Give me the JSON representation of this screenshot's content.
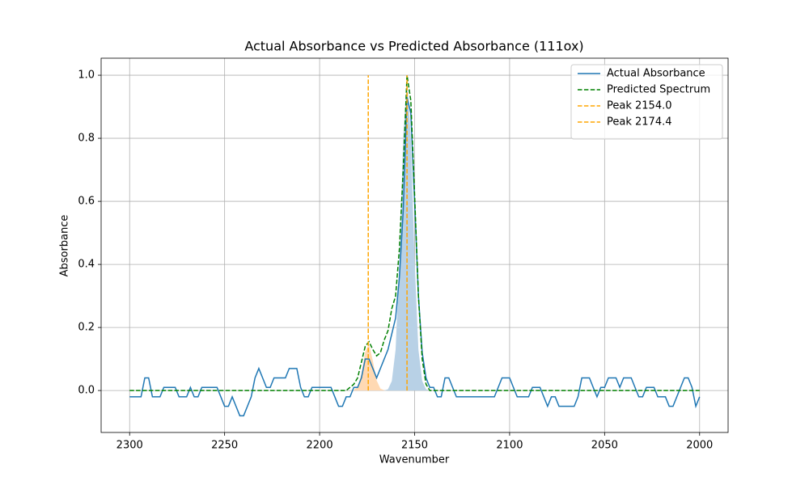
{
  "chart_data": {
    "type": "line",
    "title": "Actual Absorbance vs Predicted Absorbance (111ox)",
    "x_label": "Wavenumber",
    "y_label": "Absorbance",
    "xlim": [
      2315,
      1985
    ],
    "ylim": [
      -0.133,
      1.054
    ],
    "xticks": [
      2300,
      2250,
      2200,
      2150,
      2100,
      2050,
      2000
    ],
    "yticks": [
      {
        "value": 0,
        "label": "0.0"
      },
      0.2,
      0.4,
      0.6,
      0.8,
      {
        "value": 1,
        "label": "1.0"
      }
    ],
    "grid": true,
    "legend": "upper right",
    "x": [
      2300,
      2298,
      2296,
      2294,
      2292,
      2290,
      2288,
      2286,
      2284,
      2282,
      2280,
      2278,
      2276,
      2274,
      2272,
      2270,
      2268,
      2266,
      2264,
      2262,
      2260,
      2258,
      2256,
      2254,
      2252,
      2250,
      2248,
      2246,
      2244,
      2242,
      2240,
      2238,
      2236,
      2234,
      2232,
      2230,
      2228,
      2226,
      2224,
      2222,
      2220,
      2218,
      2216,
      2214,
      2212,
      2210,
      2208,
      2206,
      2204,
      2202,
      2200,
      2198,
      2196,
      2194,
      2192,
      2190,
      2188,
      2186,
      2184,
      2182,
      2180,
      2178,
      2176,
      2174,
      2172,
      2170,
      2168,
      2166,
      2164,
      2162,
      2160,
      2158,
      2156,
      2154,
      2152,
      2150,
      2148,
      2146,
      2144,
      2142,
      2140,
      2138,
      2136,
      2134,
      2132,
      2130,
      2128,
      2126,
      2124,
      2122,
      2120,
      2118,
      2116,
      2114,
      2112,
      2110,
      2108,
      2106,
      2104,
      2102,
      2100,
      2098,
      2096,
      2094,
      2092,
      2090,
      2088,
      2086,
      2084,
      2082,
      2080,
      2078,
      2076,
      2074,
      2072,
      2070,
      2068,
      2066,
      2064,
      2062,
      2060,
      2058,
      2056,
      2054,
      2052,
      2050,
      2048,
      2046,
      2044,
      2042,
      2040,
      2038,
      2036,
      2034,
      2032,
      2030,
      2028,
      2026,
      2024,
      2022,
      2020,
      2018,
      2016,
      2014,
      2012,
      2010,
      2008,
      2006,
      2004,
      2002,
      2000
    ],
    "fills": [
      {
        "color": "#ffd9b3",
        "x": [
          2184,
          2182,
          2180,
          2178,
          2176,
          2174,
          2172,
          2170,
          2168,
          2166,
          2164
        ],
        "values": [
          0,
          0.002,
          0.012,
          0.053,
          0.122,
          0.148,
          0.095,
          0.032,
          0.006,
          0.001,
          0
        ]
      },
      {
        "color": "#b8d1e6",
        "x": [
          2166,
          2164,
          2162,
          2160,
          2158,
          2156,
          2154,
          2152,
          2150,
          2148,
          2146,
          2144,
          2142
        ],
        "values": [
          0,
          0.004,
          0.03,
          0.13,
          0.41,
          0.8,
          0.99,
          0.8,
          0.41,
          0.13,
          0.03,
          0.004,
          0
        ]
      }
    ],
    "series": [
      {
        "name": "Actual Absorbance",
        "color": "#1f77b4",
        "dash": "solid",
        "values": [
          -0.02,
          -0.02,
          -0.02,
          -0.02,
          0.04,
          0.04,
          -0.02,
          -0.02,
          -0.02,
          0.01,
          0.01,
          0.01,
          0.01,
          -0.02,
          -0.02,
          -0.02,
          0.01,
          -0.02,
          -0.02,
          0.01,
          0.01,
          0.01,
          0.01,
          0.01,
          -0.02,
          -0.05,
          -0.05,
          -0.02,
          -0.05,
          -0.08,
          -0.08,
          -0.05,
          -0.02,
          0.04,
          0.07,
          0.04,
          0.01,
          0.01,
          0.04,
          0.04,
          0.04,
          0.04,
          0.07,
          0.07,
          0.07,
          0.01,
          -0.02,
          -0.02,
          0.01,
          0.01,
          0.01,
          0.01,
          0.01,
          0.01,
          -0.02,
          -0.05,
          -0.05,
          -0.02,
          -0.02,
          0.01,
          0.01,
          0.04,
          0.1,
          0.1,
          0.07,
          0.04,
          0.07,
          0.1,
          0.13,
          0.18,
          0.23,
          0.36,
          0.57,
          0.93,
          0.88,
          0.6,
          0.3,
          0.12,
          0.04,
          0.01,
          0.01,
          -0.02,
          -0.02,
          0.04,
          0.04,
          0.01,
          -0.02,
          -0.02,
          -0.02,
          -0.02,
          -0.02,
          -0.02,
          -0.02,
          -0.02,
          -0.02,
          -0.02,
          -0.02,
          0.01,
          0.04,
          0.04,
          0.04,
          0.01,
          -0.02,
          -0.02,
          -0.02,
          -0.02,
          0.01,
          0.01,
          0.01,
          -0.02,
          -0.05,
          -0.02,
          -0.02,
          -0.05,
          -0.05,
          -0.05,
          -0.05,
          -0.05,
          -0.02,
          0.04,
          0.04,
          0.04,
          0.01,
          -0.02,
          0.01,
          0.01,
          0.04,
          0.04,
          0.04,
          0.01,
          0.04,
          0.04,
          0.04,
          0.01,
          -0.02,
          -0.02,
          0.01,
          0.01,
          0.01,
          -0.02,
          -0.02,
          -0.02,
          -0.05,
          -0.05,
          -0.02,
          0.01,
          0.04,
          0.04,
          0.01,
          -0.05,
          -0.02
        ]
      },
      {
        "name": "Predicted Spectrum",
        "color": "#008000",
        "dash": "dashed",
        "values": [
          0,
          0,
          0,
          0,
          0,
          0,
          0,
          0,
          0,
          0,
          0,
          0,
          0,
          0,
          0,
          0,
          0,
          0,
          0,
          0,
          0,
          0,
          0,
          0,
          0,
          0,
          0,
          0,
          0,
          0,
          0,
          0,
          0,
          0,
          0,
          0,
          0,
          0,
          0,
          0,
          0,
          0,
          0,
          0,
          0,
          0,
          0,
          0,
          0,
          0,
          0,
          0,
          0,
          0,
          0,
          0,
          0,
          0,
          0.01,
          0.02,
          0.04,
          0.09,
          0.14,
          0.155,
          0.13,
          0.11,
          0.12,
          0.16,
          0.19,
          0.26,
          0.3,
          0.45,
          0.7,
          1.0,
          0.92,
          0.62,
          0.3,
          0.1,
          0.02,
          0,
          0,
          0,
          0,
          0,
          0,
          0,
          0,
          0,
          0,
          0,
          0,
          0,
          0,
          0,
          0,
          0,
          0,
          0,
          0,
          0,
          0,
          0,
          0,
          0,
          0,
          0,
          0,
          0,
          0,
          0,
          0,
          0,
          0,
          0,
          0,
          0,
          0,
          0,
          0,
          0,
          0,
          0,
          0,
          0,
          0,
          0,
          0,
          0,
          0,
          0,
          0,
          0,
          0,
          0,
          0,
          0,
          0,
          0,
          0,
          0,
          0,
          0,
          0,
          0,
          0,
          0,
          0,
          0,
          0,
          0,
          0
        ]
      },
      {
        "name": "Peak 2154.0",
        "color": "#ffa500",
        "dash": "dashed",
        "x": [
          2154.0,
          2154.0
        ],
        "values": [
          0,
          1
        ]
      },
      {
        "name": "Peak 2174.4",
        "color": "#ffa500",
        "dash": "dashed",
        "x": [
          2174.4,
          2174.4
        ],
        "values": [
          0,
          1
        ]
      }
    ]
  }
}
